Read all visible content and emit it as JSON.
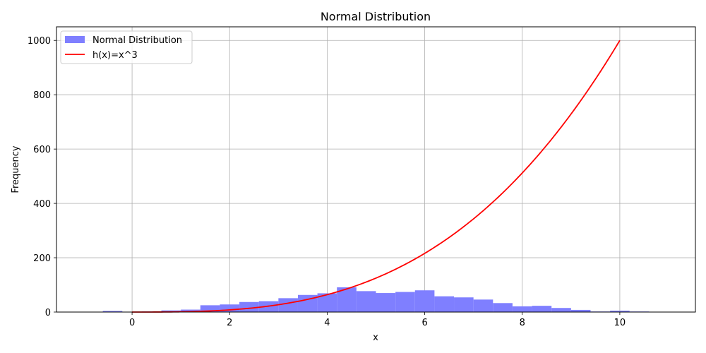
{
  "chart_data": {
    "type": "bar",
    "title": "Normal Distribution",
    "xlabel": "x",
    "ylabel": "Frequency",
    "xlim": [
      -1.55,
      11.55
    ],
    "ylim": [
      0,
      1050
    ],
    "xticks": [
      0,
      2,
      4,
      6,
      8,
      10
    ],
    "yticks": [
      0,
      200,
      400,
      600,
      800,
      1000
    ],
    "grid": true,
    "legend_position": "top-left",
    "histogram": {
      "name": "Normal Distribution",
      "color": "#7f7fff",
      "bin_start": -1.0,
      "bin_width": 0.4,
      "values": [
        1,
        4,
        1,
        2,
        6,
        9,
        25,
        28,
        37,
        40,
        51,
        63,
        69,
        91,
        77,
        70,
        74,
        80,
        58,
        54,
        46,
        33,
        21,
        23,
        15,
        8,
        2,
        5,
        2,
        1
      ]
    },
    "curve": {
      "name": "h(x)=x^3",
      "color": "#ff0000",
      "x_start": 0,
      "x_end": 10,
      "exponent": 3
    }
  }
}
